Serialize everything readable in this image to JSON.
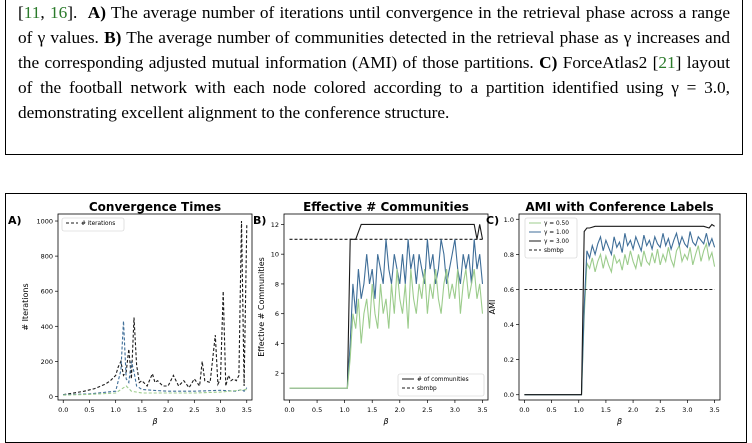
{
  "caption": {
    "ref_open": "[",
    "ref1": "11",
    "ref_sep": ", ",
    "ref2": "16",
    "ref_close": "].",
    "a_label": "A)",
    "a_text": "The average number of iterations until convergence in the retrieval phase across a range of γ values.",
    "b_label": "B)",
    "b_text": "The average number of communities detected in the retrieval phase as γ increases and the corresponding adjusted mutual information (AMI) of those partitions.",
    "c_label": "C)",
    "c_text_pre": "ForceAtlas2 [",
    "c_ref": "21",
    "c_text_post": "] layout of the football network with each node colored according to a partition identified using γ = 3.0, demonstrating excellent alignment to the conference structure."
  },
  "panels": [
    {
      "label": "A)",
      "title": "Convergence Times",
      "ylabel": "# Iterations",
      "xlabel": "β",
      "xticks": [
        "0.0",
        "0.5",
        "1.0",
        "1.5",
        "2.0",
        "2.5",
        "3.0",
        "3.5"
      ],
      "yticks": [
        "0",
        "200",
        "400",
        "600",
        "800",
        "1000"
      ],
      "legend": [
        "# iterations"
      ]
    },
    {
      "label": "B)",
      "title": "Effective # Communities",
      "ylabel": "Effective # Communities",
      "xlabel": "β",
      "xticks": [
        "0.0",
        "0.5",
        "1.0",
        "1.5",
        "2.0",
        "2.5",
        "3.0",
        "3.5"
      ],
      "yticks": [
        "2",
        "4",
        "6",
        "8",
        "10",
        "12"
      ],
      "legend": [
        "# of communities",
        "sbmbp"
      ]
    },
    {
      "label": "C)",
      "title": "AMI with Conference Labels",
      "ylabel": "AMI",
      "xlabel": "β",
      "xticks": [
        "0.0",
        "0.5",
        "1.0",
        "1.5",
        "2.0",
        "2.5",
        "3.0",
        "3.5"
      ],
      "yticks": [
        "0.0",
        "0.2",
        "0.4",
        "0.6",
        "0.8",
        "1.0"
      ],
      "legend": [
        "γ = 0.50",
        "γ = 1.00",
        "γ = 3.00",
        "sbmbp"
      ]
    }
  ],
  "chart_data": [
    {
      "type": "line",
      "title": "Convergence Times",
      "xlabel": "β",
      "ylabel": "# Iterations",
      "xlim": [
        -0.1,
        3.6
      ],
      "ylim": [
        -20,
        1040
      ],
      "colors": {
        "g050": "#9ccc8c",
        "g100": "#3f6e98",
        "g300": "#1a1a1a"
      },
      "series": [
        {
          "name": "# iterations",
          "style": "dashed",
          "color": "#1a1a1a",
          "x": [
            0.0,
            0.2,
            0.4,
            0.6,
            0.8,
            0.9,
            1.0,
            1.05,
            1.1,
            1.15,
            1.2,
            1.25,
            1.3,
            1.35,
            1.4,
            1.45,
            1.5,
            1.6,
            1.7,
            1.75,
            1.8,
            1.9,
            2.0,
            2.1,
            2.2,
            2.3,
            2.4,
            2.5,
            2.6,
            2.65,
            2.7,
            2.8,
            2.9,
            2.95,
            3.0,
            3.05,
            3.1,
            3.15,
            3.2,
            3.25,
            3.3,
            3.35,
            3.4,
            3.45,
            3.5
          ],
          "y": [
            10,
            20,
            30,
            45,
            70,
            90,
            120,
            170,
            200,
            120,
            140,
            270,
            100,
            450,
            180,
            80,
            90,
            60,
            130,
            80,
            90,
            60,
            60,
            120,
            60,
            90,
            50,
            100,
            60,
            200,
            90,
            80,
            350,
            70,
            100,
            600,
            60,
            120,
            90,
            100,
            90,
            120,
            1000,
            60,
            980
          ]
        },
        {
          "name": "",
          "style": "dashed",
          "color": "#3f6e98",
          "x": [
            0.0,
            0.5,
            1.0,
            1.05,
            1.1,
            1.15,
            1.2,
            1.25,
            1.3,
            1.35,
            1.4,
            1.5,
            1.7,
            2.0,
            2.5,
            3.0,
            3.3,
            3.4,
            3.45,
            3.5
          ],
          "y": [
            10,
            15,
            30,
            90,
            150,
            430,
            100,
            80,
            200,
            140,
            60,
            40,
            35,
            30,
            30,
            35,
            30,
            40,
            30,
            50
          ]
        },
        {
          "name": "",
          "style": "dashed",
          "color": "#9ccc8c",
          "x": [
            0.0,
            0.5,
            1.0,
            1.1,
            1.2,
            1.3,
            1.5,
            2.0,
            2.5,
            3.0,
            3.5
          ],
          "y": [
            8,
            12,
            20,
            40,
            60,
            30,
            20,
            20,
            20,
            25,
            40
          ]
        }
      ]
    },
    {
      "type": "line",
      "title": "Effective # Communities",
      "xlabel": "β",
      "ylabel": "Effective # Communities",
      "xlim": [
        -0.1,
        3.6
      ],
      "ylim": [
        0.2,
        12.7
      ],
      "series": [
        {
          "name": "# of communities",
          "style": "solid",
          "color": "#1a1a1a",
          "x": [
            0.0,
            1.0,
            1.05,
            1.1,
            1.2,
            1.3,
            1.5,
            2.0,
            2.5,
            3.0,
            3.3,
            3.35,
            3.4,
            3.45,
            3.5
          ],
          "y": [
            1,
            1,
            1,
            11,
            11,
            12,
            12,
            12,
            12,
            12,
            12,
            12,
            11,
            12,
            11
          ]
        },
        {
          "name": "sbmbp",
          "style": "dashed",
          "color": "#1a1a1a",
          "x": [
            0.0,
            3.5
          ],
          "y": [
            11,
            11
          ]
        },
        {
          "name": "",
          "style": "solid",
          "color": "#3f6e98",
          "x": [
            0.0,
            1.0,
            1.05,
            1.1,
            1.15,
            1.2,
            1.25,
            1.3,
            1.35,
            1.4,
            1.45,
            1.5,
            1.55,
            1.6,
            1.65,
            1.7,
            1.75,
            1.8,
            1.85,
            1.9,
            1.95,
            2.0,
            2.05,
            2.1,
            2.15,
            2.2,
            2.25,
            2.3,
            2.35,
            2.4,
            2.45,
            2.5,
            2.55,
            2.6,
            2.65,
            2.7,
            2.75,
            2.8,
            2.85,
            2.9,
            2.95,
            3.0,
            3.05,
            3.1,
            3.15,
            3.2,
            3.25,
            3.3,
            3.35,
            3.4,
            3.45,
            3.5
          ],
          "y": [
            1,
            1,
            1,
            4,
            8,
            6,
            9,
            7,
            8,
            10,
            8,
            9,
            7,
            10,
            9,
            8,
            11,
            9,
            8,
            10,
            9,
            8,
            10,
            8,
            11,
            9,
            10,
            8,
            10,
            9,
            8,
            11,
            9,
            10,
            8,
            9,
            11,
            10,
            8,
            9,
            10,
            11,
            9,
            8,
            10,
            9,
            10,
            8,
            11,
            9,
            10,
            8
          ]
        },
        {
          "name": "",
          "style": "solid",
          "color": "#9ccc8c",
          "x": [
            0.0,
            1.0,
            1.05,
            1.1,
            1.15,
            1.2,
            1.25,
            1.3,
            1.35,
            1.4,
            1.45,
            1.5,
            1.55,
            1.6,
            1.65,
            1.7,
            1.75,
            1.8,
            1.85,
            1.9,
            1.95,
            2.0,
            2.05,
            2.1,
            2.15,
            2.2,
            2.25,
            2.3,
            2.35,
            2.4,
            2.45,
            2.5,
            2.55,
            2.6,
            2.65,
            2.7,
            2.75,
            2.8,
            2.85,
            2.9,
            2.95,
            3.0,
            3.05,
            3.1,
            3.15,
            3.2,
            3.25,
            3.3,
            3.35,
            3.4,
            3.45,
            3.5
          ],
          "y": [
            1,
            1,
            1,
            3,
            6,
            5,
            7,
            4,
            6,
            7,
            5,
            8,
            6,
            5,
            8,
            6,
            7,
            5,
            8,
            6,
            9,
            7,
            6,
            8,
            5,
            9,
            7,
            6,
            8,
            7,
            9,
            6,
            8,
            7,
            9,
            7,
            6,
            8,
            9,
            7,
            8,
            7,
            9,
            6,
            8,
            9,
            7,
            8,
            9,
            7,
            8,
            6
          ]
        }
      ]
    },
    {
      "type": "line",
      "title": "AMI with Conference Labels",
      "xlabel": "β",
      "ylabel": "AMI",
      "xlim": [
        -0.1,
        3.6
      ],
      "ylim": [
        -0.03,
        1.03
      ],
      "series": [
        {
          "name": "γ = 0.50",
          "style": "solid",
          "color": "#9ccc8c",
          "x": [
            0.0,
            1.0,
            1.05,
            1.1,
            1.15,
            1.2,
            1.25,
            1.3,
            1.35,
            1.4,
            1.45,
            1.5,
            1.55,
            1.6,
            1.65,
            1.7,
            1.75,
            1.8,
            1.85,
            1.9,
            1.95,
            2.0,
            2.05,
            2.1,
            2.15,
            2.2,
            2.25,
            2.3,
            2.35,
            2.4,
            2.45,
            2.5,
            2.55,
            2.6,
            2.65,
            2.7,
            2.75,
            2.8,
            2.85,
            2.9,
            2.95,
            3.0,
            3.05,
            3.1,
            3.15,
            3.2,
            3.25,
            3.3,
            3.35,
            3.4,
            3.45,
            3.5
          ],
          "y": [
            0,
            0,
            0,
            0.45,
            0.75,
            0.72,
            0.78,
            0.7,
            0.76,
            0.8,
            0.72,
            0.79,
            0.74,
            0.7,
            0.8,
            0.75,
            0.77,
            0.71,
            0.8,
            0.74,
            0.82,
            0.76,
            0.72,
            0.8,
            0.73,
            0.82,
            0.76,
            0.74,
            0.81,
            0.75,
            0.83,
            0.74,
            0.8,
            0.76,
            0.84,
            0.77,
            0.73,
            0.82,
            0.85,
            0.76,
            0.8,
            0.77,
            0.84,
            0.74,
            0.8,
            0.85,
            0.76,
            0.82,
            0.86,
            0.77,
            0.81,
            0.73
          ]
        },
        {
          "name": "γ = 1.00",
          "style": "solid",
          "color": "#3f6e98",
          "x": [
            0.0,
            1.0,
            1.05,
            1.1,
            1.15,
            1.2,
            1.25,
            1.3,
            1.35,
            1.4,
            1.45,
            1.5,
            1.55,
            1.6,
            1.65,
            1.7,
            1.75,
            1.8,
            1.85,
            1.9,
            1.95,
            2.0,
            2.05,
            2.1,
            2.15,
            2.2,
            2.25,
            2.3,
            2.35,
            2.4,
            2.45,
            2.5,
            2.55,
            2.6,
            2.65,
            2.7,
            2.75,
            2.8,
            2.85,
            2.9,
            2.95,
            3.0,
            3.05,
            3.1,
            3.15,
            3.2,
            3.25,
            3.3,
            3.35,
            3.4,
            3.45,
            3.5
          ],
          "y": [
            0,
            0,
            0,
            0.5,
            0.82,
            0.78,
            0.85,
            0.8,
            0.86,
            0.9,
            0.82,
            0.88,
            0.84,
            0.8,
            0.9,
            0.84,
            0.87,
            0.81,
            0.92,
            0.85,
            0.88,
            0.83,
            0.9,
            0.86,
            0.82,
            0.91,
            0.85,
            0.88,
            0.83,
            0.9,
            0.86,
            0.84,
            0.92,
            0.85,
            0.89,
            0.83,
            0.88,
            0.92,
            0.85,
            0.9,
            0.86,
            0.84,
            0.93,
            0.87,
            0.85,
            0.9,
            0.88,
            0.86,
            0.92,
            0.85,
            0.89,
            0.84
          ]
        },
        {
          "name": "γ = 3.00",
          "style": "solid",
          "color": "#1a1a1a",
          "x": [
            0.0,
            1.0,
            1.05,
            1.1,
            1.15,
            1.2,
            1.3,
            1.5,
            2.0,
            2.5,
            3.0,
            3.3,
            3.4,
            3.45,
            3.5
          ],
          "y": [
            0,
            0,
            0,
            0.93,
            0.95,
            0.95,
            0.96,
            0.96,
            0.96,
            0.96,
            0.96,
            0.96,
            0.95,
            0.97,
            0.96
          ]
        },
        {
          "name": "sbmbp",
          "style": "dashed",
          "color": "#1a1a1a",
          "x": [
            0.0,
            3.5
          ],
          "y": [
            0.6,
            0.6
          ]
        }
      ]
    }
  ]
}
